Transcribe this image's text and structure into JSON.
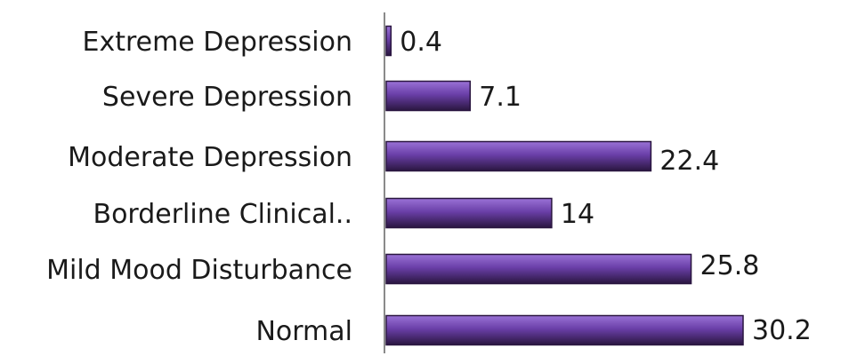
{
  "chart_data": {
    "type": "bar",
    "orientation": "horizontal",
    "categories": [
      "Extreme Depression",
      "Severe Depression",
      "Moderate Depression",
      "Borderline Clinical..",
      "Mild Mood Disturbance",
      "Normal"
    ],
    "values": [
      0.4,
      7.1,
      22.4,
      14,
      25.8,
      30.2
    ],
    "value_labels": [
      "0.4",
      "7.1",
      "22.4",
      "14",
      "25.8",
      "30.2"
    ],
    "title": "",
    "xlabel": "",
    "ylabel": "",
    "xlim": [
      0,
      30.2
    ],
    "grid": false,
    "legend": "none",
    "bar_color": "#6a3fa8",
    "bar_color_dark": "#2a1640",
    "bar_color_light": "#9a72d6"
  }
}
